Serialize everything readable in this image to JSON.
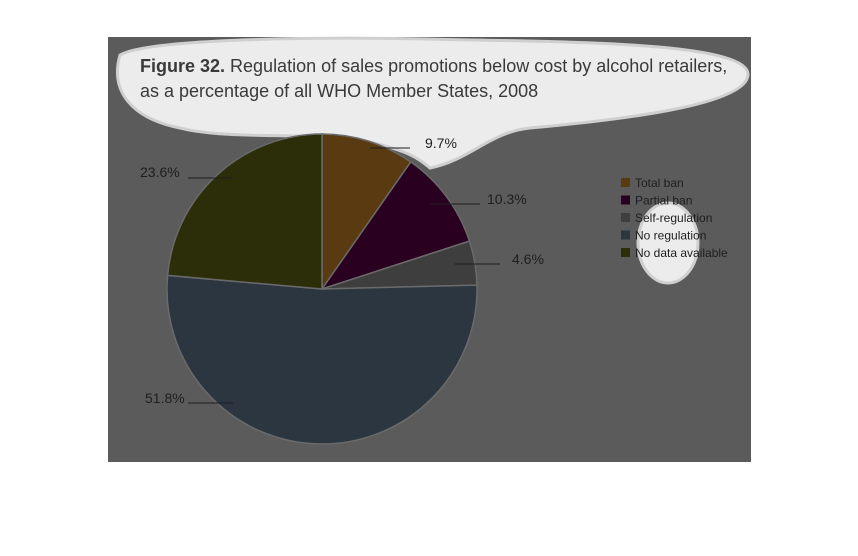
{
  "figure_label": "Figure 32.",
  "title_line1": "Regulation of sales promotions below cost by alcohol retailers,",
  "title_line2": "as a percentage of all WHO Member States, 2008",
  "colors": {
    "panel_background": "#5b5b5b",
    "highlight": "#e8e8e8"
  },
  "chart_data": {
    "type": "pie",
    "title": "Regulation of sales promotions below cost by alcohol retailers, as a percentage of all WHO Member States, 2008",
    "slices": [
      {
        "name": "Total ban",
        "value": 9.7,
        "label": "9.7%",
        "color": "#5a3a10"
      },
      {
        "name": "Partial ban",
        "value": 10.3,
        "label": "10.3%",
        "color": "#2a0020"
      },
      {
        "name": "Self-regulation",
        "value": 4.6,
        "label": "4.6%",
        "color": "#3e3e3e"
      },
      {
        "name": "No regulation",
        "value": 51.8,
        "label": "51.8%",
        "color": "#2b3641"
      },
      {
        "name": "No data available",
        "value": 23.6,
        "label": "23.6%",
        "color": "#2c2e0a"
      }
    ],
    "legend_position": "right"
  }
}
